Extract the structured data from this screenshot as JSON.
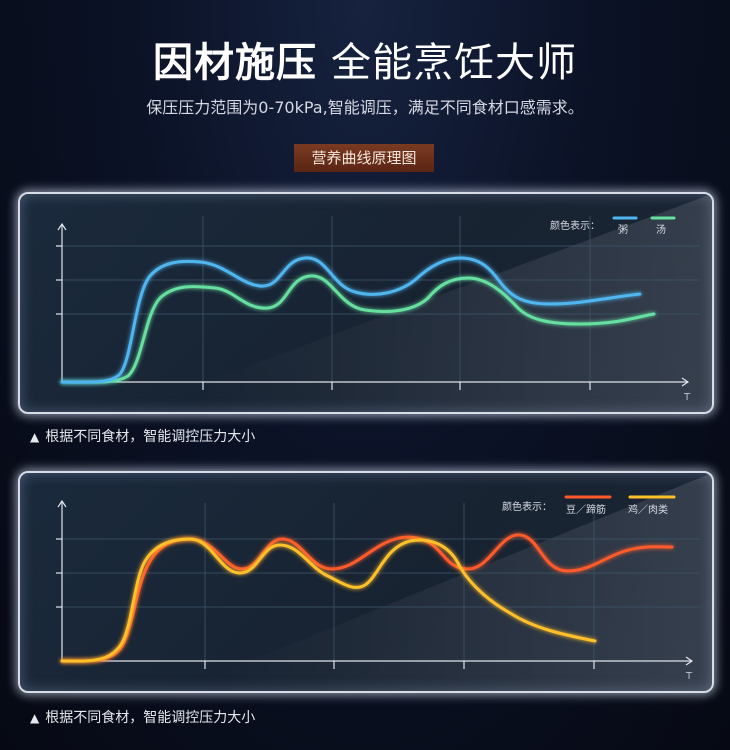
{
  "header": {
    "title_bold": "因材施压",
    "title_light": "全能烹饪大师",
    "subtitle": "保压压力范围为0-70kPa,智能调压，满足不同食材口感需求。",
    "badge": "营养曲线原理图"
  },
  "colors": {
    "congee": "#4fb6ef",
    "soup": "#66e0a0",
    "bean": "#ff5a2a",
    "chicken": "#ffc02a"
  },
  "panel1": {
    "legend_title": "颜色表示：",
    "legend_items": [
      "粥",
      "汤"
    ],
    "x_axis_label": "T",
    "caption": "根据不同食材，智能调控压力大小"
  },
  "panel2": {
    "legend_title": "颜色表示：",
    "legend_items": [
      "豆／蹄筋",
      "鸡／肉类"
    ],
    "x_axis_label": "T",
    "caption": "根据不同食材，智能调控压力大小"
  },
  "caption_marker": "▲"
}
